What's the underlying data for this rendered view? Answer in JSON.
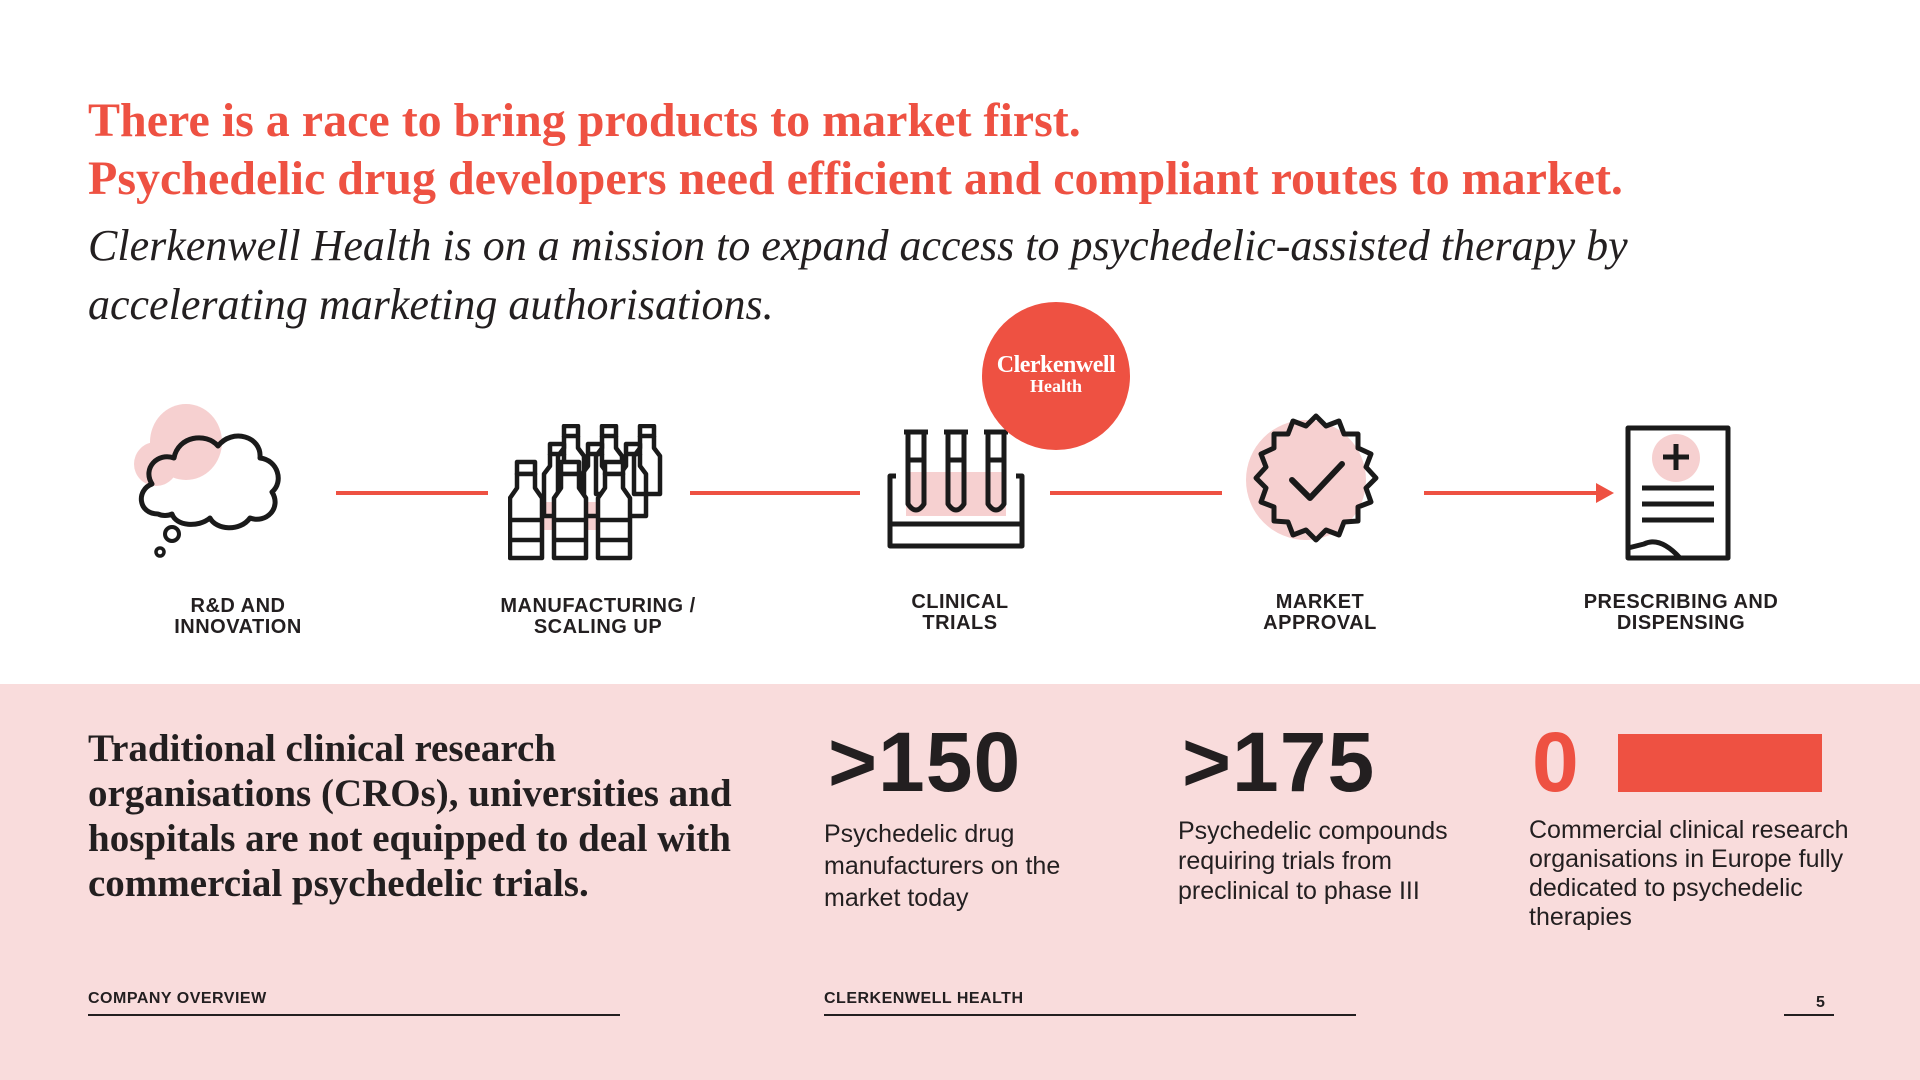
{
  "headline": {
    "line1": "There is a race to bring products to market first.",
    "line2": "Psychedelic drug developers need efficient and compliant routes to market."
  },
  "mission": "Clerkenwell Health is on a mission to expand access to psychedelic-assisted therapy by accelerating marketing authorisations.",
  "logo": {
    "line1": "Clerkenwell",
    "line2": "Health"
  },
  "steps": [
    {
      "label_line1": "R&D AND",
      "label_line2": "INNOVATION",
      "icon": "thought-cloud-icon"
    },
    {
      "label_line1": "MANUFACTURING /",
      "label_line2": "SCALING UP",
      "icon": "bottles-icon"
    },
    {
      "label_line1": "CLINICAL",
      "label_line2": "TRIALS",
      "icon": "test-tubes-icon"
    },
    {
      "label_line1": "MARKET",
      "label_line2": "APPROVAL",
      "icon": "approval-badge-icon"
    },
    {
      "label_line1": "PRESCRIBING AND",
      "label_line2": "DISPENSING",
      "icon": "prescription-icon"
    }
  ],
  "bottom_statement": "Traditional clinical research organisations (CROs), universities and hospitals are not equipped to deal with commercial psychedelic trials.",
  "stats": [
    {
      "number": ">150",
      "description": "Psychedelic drug manufacturers on the market today"
    },
    {
      "number": ">175",
      "description": "Psychedelic compounds requiring trials from preclinical to phase III"
    },
    {
      "number": "0",
      "description": "Commercial clinical research organisations in Europe fully dedicated to psychedelic therapies"
    }
  ],
  "footer": {
    "left": "COMPANY OVERVIEW",
    "center": "CLERKENWELL HEALTH",
    "page": "5"
  },
  "colors": {
    "accent": "#ee5142",
    "pink_bg": "#f9dcdc",
    "pink_light": "#f6d0d0",
    "text": "#231f20"
  }
}
